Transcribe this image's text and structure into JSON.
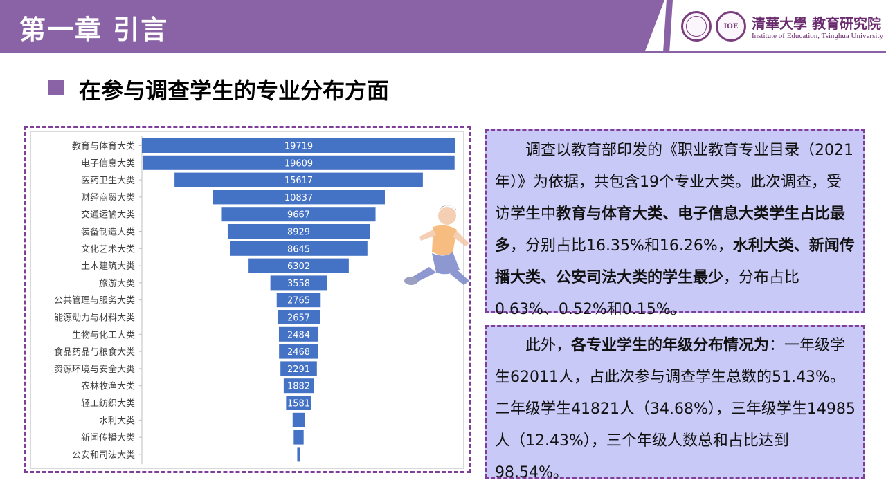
{
  "header": {
    "title": "第一章 引言",
    "institution_cn": "清華大學 教育研究院",
    "institution_en": "Institute of Education, Tsinghua University",
    "logo_text": "IOE"
  },
  "section": {
    "heading": "在参与调查学生的专业分布方面"
  },
  "box1": {
    "p1": "调查以教育部印发的《职业教育专业目录（2021年）》为依据，共包含19个专业大类。此次调查，受访学生中",
    "b1": "教育与体育大类、电子信息大类学生占比最多",
    "p2": "，分别占比16.35%和16.26%，",
    "b2": "水利大类、新闻传播大类、公安司法大类的学生最少",
    "p3": "，分布占比0.63%、0.52%和0.15%。"
  },
  "box2": {
    "p1": "此外，",
    "b1": "各专业学生的年级分布情况为",
    "p2": "：一年级学生62011人，占此次参与调查学生总数的51.43%。二年级学生41821人（34.68%），三年级学生14985人（12.43%），三个年级人数总和占比达到98.54%。"
  },
  "colors": {
    "accent": "#8a63a6",
    "bar": "#4472c4",
    "box_bg": "#c9c9f7",
    "dash": "#7f3f98"
  },
  "chart_data": {
    "type": "bar",
    "orientation": "horizontal-centered",
    "categories": [
      "教育与体育大类",
      "电子信息大类",
      "医药卫生大类",
      "财经商贸大类",
      "交通运输大类",
      "装备制造大类",
      "文化艺术大类",
      "土木建筑大类",
      "旅游大类",
      "公共管理与服务大类",
      "能源动力与材料大类",
      "生物与化工大类",
      "食品药品与粮食大类",
      "资源环境与安全大类",
      "农林牧渔大类",
      "轻工纺织大类",
      "水利大类",
      "新闻传播大类",
      "公安和司法大类"
    ],
    "values": [
      19719,
      19609,
      15617,
      10837,
      9667,
      8929,
      8645,
      6302,
      3558,
      2765,
      2657,
      2484,
      2468,
      2291,
      1882,
      1581,
      760,
      627,
      181
    ],
    "labels": [
      "19719",
      "19609",
      "15617",
      "10837",
      "9667",
      "8929",
      "8645",
      "6302",
      "3558",
      "2765",
      "2657",
      "2484",
      "2468",
      "2291",
      "1882",
      "1581",
      "",
      "",
      ""
    ]
  }
}
